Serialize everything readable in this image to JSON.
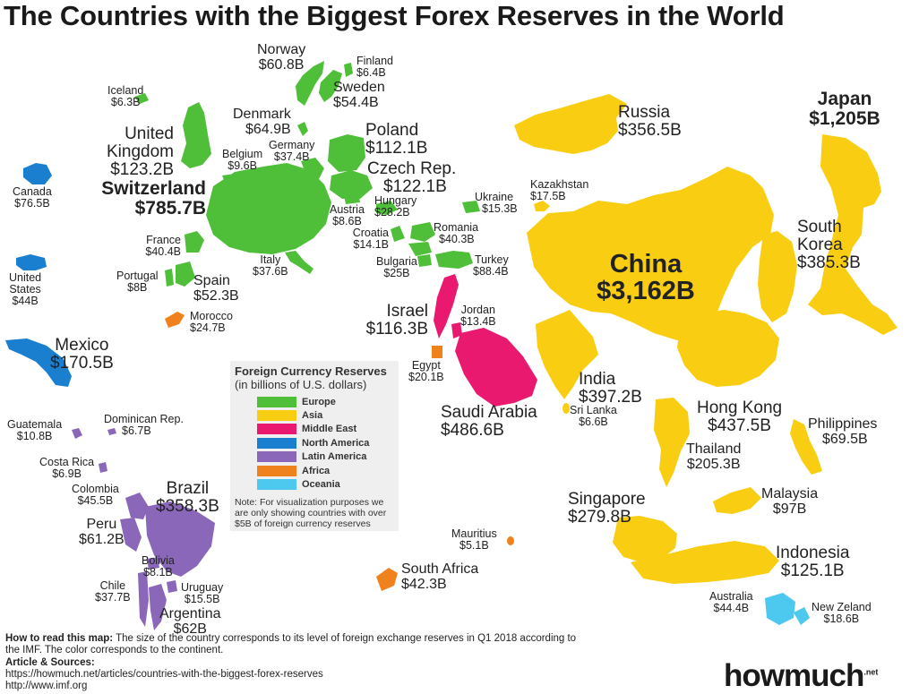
{
  "title": "The Countries with the Biggest Forex Reserves in the World",
  "colors": {
    "europe": "#4fbf3a",
    "asia": "#f9cd12",
    "middle_east": "#e8196f",
    "north_america": "#1a7fcf",
    "latin_america": "#8a67b8",
    "africa": "#f0821e",
    "oceania": "#4dc8ee"
  },
  "legend": {
    "title": "Foreign Currency Reserves",
    "subtitle": "(in billions of U.S. dollars)",
    "items": [
      {
        "label": "Europe",
        "color": "#4fbf3a"
      },
      {
        "label": "Asia",
        "color": "#f9cd12"
      },
      {
        "label": "Middle East",
        "color": "#e8196f"
      },
      {
        "label": "North America",
        "color": "#1a7fcf"
      },
      {
        "label": "Latin America",
        "color": "#8a67b8"
      },
      {
        "label": "Africa",
        "color": "#f0821e"
      },
      {
        "label": "Oceania",
        "color": "#4dc8ee"
      }
    ],
    "note": "Note: For visualization purposes we are only showing countries with over $5B of foreign currency reserves"
  },
  "countries": {
    "norway": {
      "name": "Norway",
      "value": "$60.8B"
    },
    "finland": {
      "name": "Finland",
      "value": "$6.4B"
    },
    "sweden": {
      "name": "Sweden",
      "value": "$54.4B"
    },
    "iceland": {
      "name": "Iceland",
      "value": "$6.3B"
    },
    "denmark": {
      "name": "Denmark",
      "value": "$64.9B"
    },
    "poland": {
      "name": "Poland",
      "value": "$112.1B"
    },
    "uk_line1": {
      "name": "United"
    },
    "uk": {
      "name": "Kingdom",
      "value": "$123.2B"
    },
    "germany": {
      "name": "Germany",
      "value": "$37.4B"
    },
    "belgium": {
      "name": "Belgium",
      "value": "$9.6B"
    },
    "czech": {
      "name": "Czech Rep.",
      "value": "$122.1B"
    },
    "canada": {
      "name": "Canada",
      "value": "$76.5B"
    },
    "switzerland": {
      "name": "Switzerland",
      "value": "$785.7B"
    },
    "hungary": {
      "name": "Hungary",
      "value": "$28.2B"
    },
    "austria": {
      "name": "Austria",
      "value": "$8.6B"
    },
    "ukraine": {
      "name": "Ukraine",
      "value": "$15.3B"
    },
    "kazakhstan": {
      "name": "Kazakhstan",
      "value": "$17.5B"
    },
    "romania": {
      "name": "Romania",
      "value": "$40.3B"
    },
    "croatia": {
      "name": "Croatia",
      "value": "$14.1B"
    },
    "france": {
      "name": "France",
      "value": "$40.4B"
    },
    "bulgaria": {
      "name": "Bulgaria",
      "value": "$25B"
    },
    "turkey": {
      "name": "Turkey",
      "value": "$88.4B"
    },
    "us_line1": {
      "name": "United"
    },
    "us": {
      "name": "States",
      "value": "$44B"
    },
    "portugal": {
      "name": "Portugal",
      "value": "$8B"
    },
    "spain": {
      "name": "Spain",
      "value": "$52.3B"
    },
    "italy": {
      "name": "Italy",
      "value": "$37.6B"
    },
    "morocco": {
      "name": "Morocco",
      "value": "$24.7B"
    },
    "israel": {
      "name": "Israel",
      "value": "$116.3B"
    },
    "jordan": {
      "name": "Jordan",
      "value": "$13.4B"
    },
    "mexico": {
      "name": "Mexico",
      "value": "$170.5B"
    },
    "egypt": {
      "name": "Egypt",
      "value": "$20.1B"
    },
    "saudi": {
      "name": "Saudi Arabia",
      "value": "$486.6B"
    },
    "guatemala": {
      "name": "Guatemala",
      "value": "$10.8B"
    },
    "dominican": {
      "name": "Dominican Rep.",
      "value": "$6.7B"
    },
    "costa_rica": {
      "name": "Costa Rica",
      "value": "$6.9B"
    },
    "colombia": {
      "name": "Colombia",
      "value": "$45.5B"
    },
    "brazil": {
      "name": "Brazil",
      "value": "$358.3B"
    },
    "peru": {
      "name": "Peru",
      "value": "$61.2B"
    },
    "bolivia": {
      "name": "Bolivia",
      "value": "$8.1B"
    },
    "chile": {
      "name": "Chile",
      "value": "$37.7B"
    },
    "uruguay": {
      "name": "Uruguay",
      "value": "$15.5B"
    },
    "argentina": {
      "name": "Argentina",
      "value": "$62B"
    },
    "russia": {
      "name": "Russia",
      "value": "$356.5B"
    },
    "japan": {
      "name": "Japan",
      "value": "$1,205B"
    },
    "south_korea_line1": {
      "name": "South"
    },
    "south_korea": {
      "name": "Korea",
      "value": "$385.3B"
    },
    "china": {
      "name": "China",
      "value": "$3,162B"
    },
    "india": {
      "name": "India",
      "value": "$397.2B"
    },
    "sri_lanka": {
      "name": "Sri Lanka",
      "value": "$6.6B"
    },
    "hong_kong": {
      "name": "Hong Kong",
      "value": "$437.5B"
    },
    "philippines": {
      "name": "Philippines",
      "value": "$69.5B"
    },
    "thailand": {
      "name": "Thailand",
      "value": "$205.3B"
    },
    "singapore": {
      "name": "Singapore",
      "value": "$279.8B"
    },
    "malaysia": {
      "name": "Malaysia",
      "value": "$97B"
    },
    "mauritius": {
      "name": "Mauritius",
      "value": "$5.1B"
    },
    "south_africa": {
      "name": "South Africa",
      "value": "$42.3B"
    },
    "indonesia": {
      "name": "Indonesia",
      "value": "$125.1B"
    },
    "australia": {
      "name": "Australia",
      "value": "$44.4B"
    },
    "new_zealand": {
      "name": "New Zeland",
      "value": "$18.6B"
    }
  },
  "footer": {
    "how_to_label": "How to read this map:",
    "how_to_text": "The size of the country corresponds to its level of foreign exchange reserves in Q1 2018 according to the IMF. The color corresponds to the continent.",
    "sources_label": "Article & Sources:",
    "source1": "https://howmuch.net/articles/countries-with-the-biggest-forex-reserves",
    "source2": "http://www.imf.org"
  },
  "brand": {
    "name": "howmuch",
    "tag": ".net"
  }
}
